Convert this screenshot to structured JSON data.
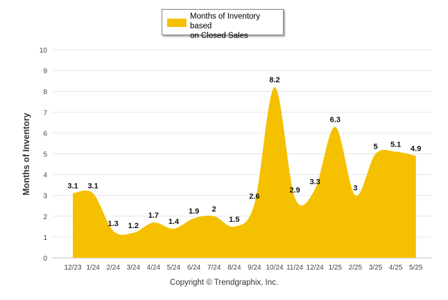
{
  "chart_data": {
    "type": "area",
    "categories": [
      "12/23",
      "1/24",
      "2/24",
      "3/24",
      "4/24",
      "5/24",
      "6/24",
      "7/24",
      "8/24",
      "9/24",
      "10/24",
      "11/24",
      "12/24",
      "1/25",
      "2/25",
      "3/25",
      "4/25",
      "5/25"
    ],
    "series": [
      {
        "name": "Months of Inventory based on Closed Sales",
        "values": [
          3.1,
          3.1,
          1.3,
          1.2,
          1.7,
          1.4,
          1.9,
          2,
          1.5,
          2.6,
          8.2,
          2.9,
          3.3,
          6.3,
          3,
          5,
          5.1,
          4.9
        ],
        "labels": [
          "3.1",
          "3.1",
          "1.3",
          "1.2",
          "1.7",
          "1.4",
          "1.9",
          "2",
          "1.5",
          "2.6",
          "8.2",
          "2.9",
          "3.3",
          "6.3",
          "3",
          "5",
          "5.1",
          "4.9"
        ],
        "color": "#F5C000"
      }
    ],
    "ylabel": "Months of Inventory",
    "xlabel": "",
    "ylim": [
      0,
      10
    ],
    "yticks": [
      "0",
      "1",
      "2",
      "3",
      "4",
      "5",
      "6",
      "7",
      "8",
      "9",
      "10"
    ],
    "grid": true,
    "legend": "top-center"
  },
  "legend": {
    "line1": "Months of Inventory based",
    "line2": "on Closed Sales"
  },
  "footer": {
    "copyright": "Copyright © Trendgraphix, Inc."
  }
}
